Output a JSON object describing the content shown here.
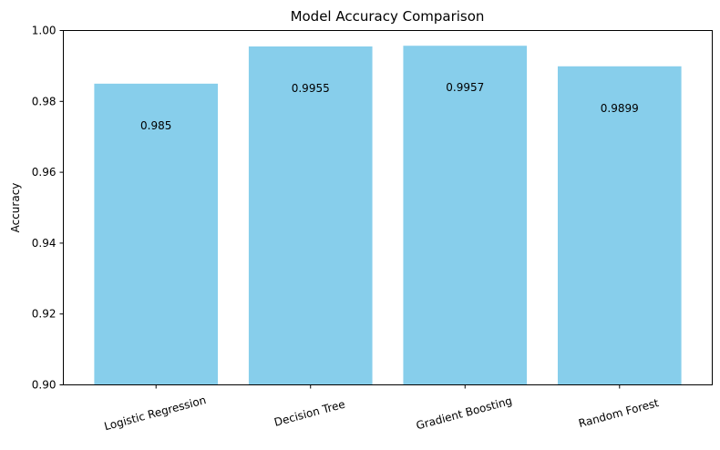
{
  "chart_data": {
    "type": "bar",
    "title": "Model Accuracy Comparison",
    "xlabel": "",
    "ylabel": "Accuracy",
    "categories": [
      "Logistic Regression",
      "Decision Tree",
      "Gradient Boosting",
      "Random Forest"
    ],
    "values": [
      0.985,
      0.9955,
      0.9957,
      0.9899
    ],
    "value_labels": [
      "0.985",
      "0.9955",
      "0.9957",
      "0.9899"
    ],
    "ylim": [
      0.9,
      1.0
    ],
    "yticks": [
      0.9,
      0.92,
      0.94,
      0.96,
      0.98,
      1.0
    ],
    "ytick_labels": [
      "0.90",
      "0.92",
      "0.94",
      "0.96",
      "0.98",
      "1.00"
    ],
    "bar_color": "#87ceeb",
    "grid": false,
    "legend": "none"
  }
}
